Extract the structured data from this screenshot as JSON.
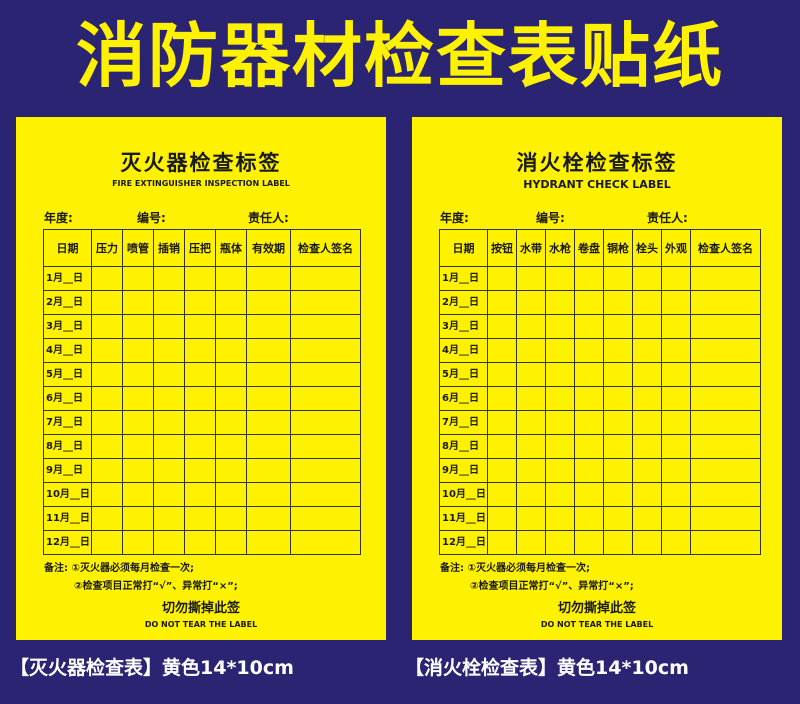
{
  "title": "消防器材检查表贴纸",
  "colors": {
    "background": "#2b2473",
    "card": "#fff200",
    "title": "#fff200"
  },
  "left": {
    "title": "灭火器检查标签",
    "subtitle": "FIRE EXTINGUISHER INSPECTION LABEL",
    "year": "年度:",
    "number": "编号:",
    "owner": "责任人:",
    "headers": [
      "日期",
      "压力",
      "喷管",
      "插销",
      "压把",
      "瓶体",
      "有效期",
      "检查人签名"
    ],
    "note1": "备注: ①灭火器必须每月检查一次;",
    "note2": "②检查项目正常打“√”、异常打“×”;",
    "warn": "切勿撕掉此签",
    "warn_en": "DO NOT TEAR THE LABEL",
    "caption": "【灭火器检查表】黄色14*10cm"
  },
  "right": {
    "title": "消火栓检查标签",
    "subtitle": "HYDRANT CHECK LABEL",
    "year": "年度:",
    "number": "编号:",
    "owner": "责任人:",
    "headers": [
      "日期",
      "按钮",
      "水带",
      "水枪",
      "卷盘",
      "铜枪",
      "栓头",
      "外观",
      "检查人签名"
    ],
    "note1": "备注: ①灭火器必须每月检查一次;",
    "note2": "②检查项目正常打“√”、异常打“×”;",
    "warn": "切勿撕掉此签",
    "warn_en": "DO NOT TEAR THE LABEL",
    "caption": "【消火栓检查表】黄色14*10cm"
  },
  "months": [
    "1月__日",
    "2月__日",
    "3月__日",
    "4月__日",
    "5月__日",
    "6月__日",
    "7月__日",
    "8月__日",
    "9月__日",
    "10月__日",
    "11月__日",
    "12月__日"
  ]
}
